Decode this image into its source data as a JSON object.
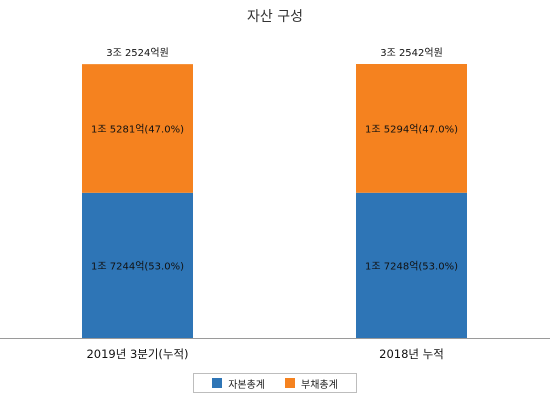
{
  "chart_data": {
    "type": "bar",
    "stacked": true,
    "title": "자산 구성",
    "categories": [
      "2019년 3분기(누적)",
      "2018년 누적"
    ],
    "series": [
      {
        "name": "자본총계",
        "color": "#2e75b6",
        "values": [
          17244,
          17248
        ],
        "labels": [
          "1조 7244억(53.0%)",
          "1조 7248억(53.0%)"
        ]
      },
      {
        "name": "부채총계",
        "color": "#f5821f",
        "values": [
          15281,
          15294
        ],
        "labels": [
          "1조 5281억(47.0%)",
          "1조 5294억(47.0%)"
        ]
      }
    ],
    "totals": [
      "3조 2524억원",
      "3조 2542억원"
    ],
    "legend_position": "bottom"
  }
}
